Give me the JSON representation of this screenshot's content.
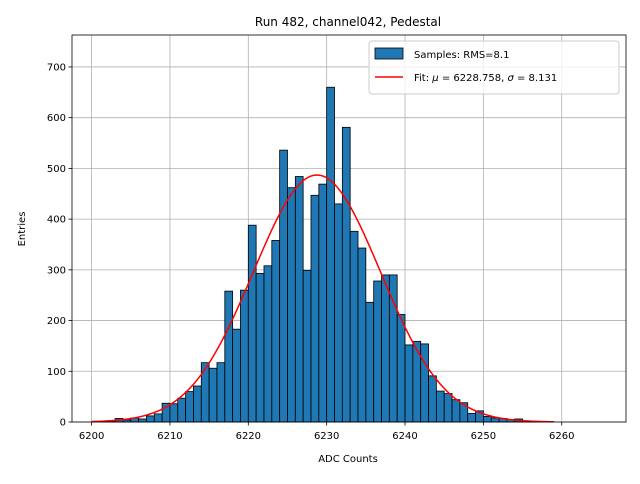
{
  "chart_data": {
    "type": "bar",
    "title": "Run 482, channel042, Pedestal",
    "xlabel": "ADC Counts",
    "ylabel": "Entries",
    "xlim": [
      6197.5,
      6268.2
    ],
    "ylim": [
      0,
      763
    ],
    "xticks": [
      6200,
      6210,
      6220,
      6230,
      6240,
      6250,
      6260
    ],
    "yticks": [
      0,
      100,
      200,
      300,
      400,
      500,
      600,
      700
    ],
    "grid": true,
    "legend_position": "top-right",
    "colors": {
      "bar": "#1f77b4",
      "bar_edge": "#000000",
      "fit": "#ff0000",
      "grid": "#b0b0b0"
    },
    "histogram": {
      "name": "Samples: RMS=8.1",
      "bin_edges_start": 6201,
      "bin_width": 1,
      "counts": [
        1,
        2,
        7,
        4,
        8,
        6,
        12,
        16,
        37,
        36,
        47,
        60,
        71,
        117,
        106,
        117,
        258,
        183,
        260,
        388,
        293,
        308,
        358,
        536,
        462,
        484,
        299,
        447,
        469,
        660,
        430,
        581,
        376,
        343,
        236,
        278,
        290,
        290,
        212,
        152,
        159,
        154,
        91,
        61,
        56,
        44,
        38,
        17,
        22,
        11,
        8,
        7,
        5,
        6,
        1,
        1,
        0,
        0
      ]
    },
    "fit": {
      "label": "Fit: μ = 6228.758, σ = 8.131",
      "label_prefix": "Fit: ",
      "mu_symbol": "μ",
      "mu_text": " = 6228.758, ",
      "sigma_symbol": "σ",
      "sigma_text": " = 8.131",
      "mu": 6228.758,
      "sigma": 8.131,
      "amplitude": 487,
      "x_range": [
        6200,
        6259
      ]
    }
  }
}
